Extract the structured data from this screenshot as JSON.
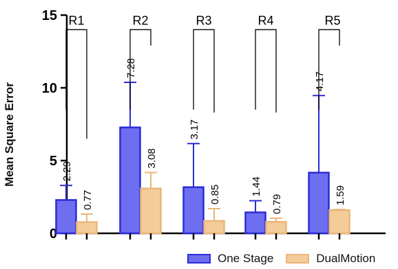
{
  "chart_data": {
    "type": "bar",
    "title": "",
    "xlabel": "",
    "ylabel": "Mean Square Error",
    "ylim": [
      0,
      15
    ],
    "yticks": [
      0,
      5,
      10,
      15
    ],
    "grid": false,
    "legend_position": "bottom-right",
    "groups": [
      "R1",
      "R2",
      "R3",
      "R4",
      "R5"
    ],
    "series": [
      {
        "name": "One Stage",
        "fill": "#6e6ef0",
        "edge": "#2b2bd6",
        "values": [
          2.29,
          7.28,
          3.17,
          1.44,
          4.17
        ],
        "labels": [
          "2.29",
          "7.28",
          "3.17",
          "1.44",
          "4.17"
        ],
        "error": [
          1.0,
          3.1,
          3.0,
          0.8,
          5.3
        ]
      },
      {
        "name": "DualMotion",
        "fill": "#f3cc9a",
        "edge": "#eab77a",
        "values": [
          0.77,
          3.08,
          0.85,
          0.79,
          1.59
        ],
        "labels": [
          "0.77",
          "3.08",
          "0.85",
          "0.79",
          "1.59"
        ],
        "error": [
          0.55,
          1.1,
          0.85,
          0.25,
          0.05
        ]
      }
    ],
    "brackets": [
      {
        "label": "R1",
        "left_y": 14.0,
        "right_y": 6.5
      },
      {
        "label": "R2",
        "left_y": 14.0,
        "right_y": 12.9
      },
      {
        "label": "R3",
        "left_y": 14.0,
        "right_y": 8.3
      },
      {
        "label": "R4",
        "left_y": 14.0,
        "right_y": 8.3
      },
      {
        "label": "R5",
        "left_y": 14.0,
        "right_y": 12.9
      }
    ]
  }
}
